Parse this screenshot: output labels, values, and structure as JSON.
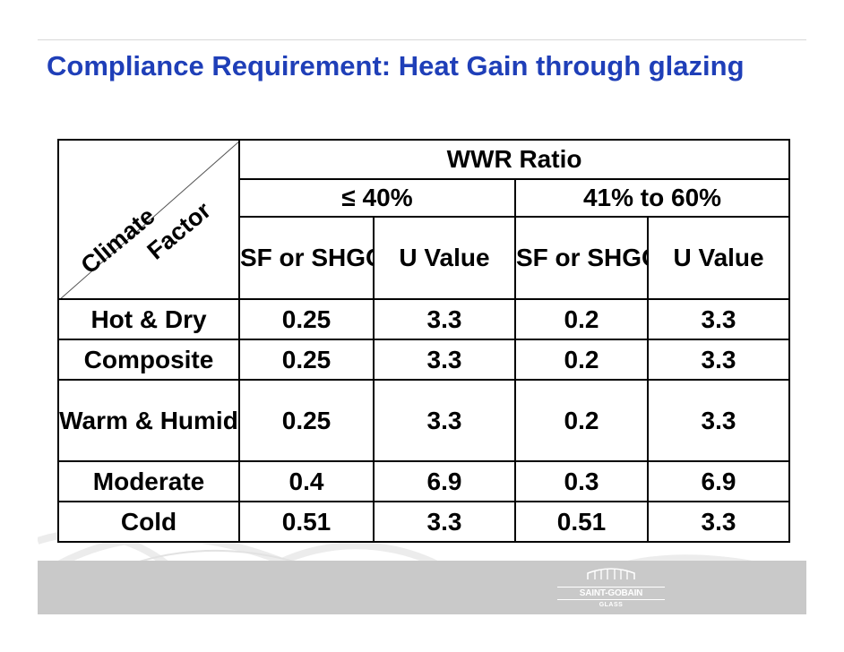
{
  "slide": {
    "title": "Compliance Requirement: Heat Gain through glazing"
  },
  "table": {
    "corner_row_label": "Climate",
    "corner_col_label": "Factor",
    "group_header": "WWR Ratio",
    "subgroups": [
      "≤ 40%",
      "41% to 60%"
    ],
    "columns": [
      "SF or SHGC",
      "U Value",
      "SF or SHGC",
      "U Value"
    ],
    "rows": [
      {
        "label": "Hot & Dry",
        "values": [
          "0.25",
          "3.3",
          "0.2",
          "3.3"
        ]
      },
      {
        "label": "Composite",
        "values": [
          "0.25",
          "3.3",
          "0.2",
          "3.3"
        ]
      },
      {
        "label": "Warm & Humid",
        "values": [
          "0.25",
          "3.3",
          "0.2",
          "3.3"
        ]
      },
      {
        "label": "Moderate",
        "values": [
          "0.4",
          "6.9",
          "0.3",
          "6.9"
        ]
      },
      {
        "label": "Cold",
        "values": [
          "0.51",
          "3.3",
          "0.51",
          "3.3"
        ]
      }
    ]
  },
  "logo": {
    "name": "SAINT-GOBAIN",
    "sub": "GLASS",
    "icon": "building-icon"
  },
  "colors": {
    "title": "#1f3fb8",
    "footer": "#c9c9c9"
  }
}
